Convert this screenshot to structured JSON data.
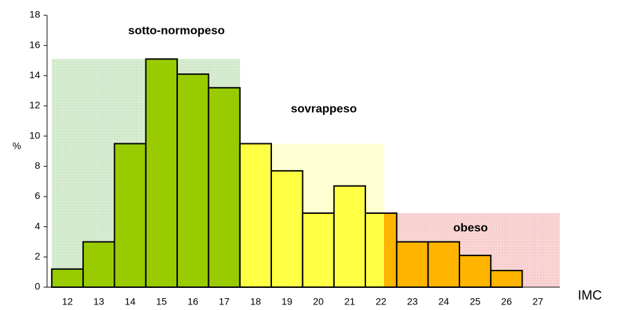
{
  "chart_data": {
    "type": "bar",
    "y_label": "%",
    "x_label": "IMC",
    "x": [
      12,
      13,
      14,
      15,
      16,
      17,
      18,
      19,
      20,
      21,
      22,
      23,
      24,
      25,
      26,
      27
    ],
    "values": [
      1.2,
      3.0,
      9.5,
      15.1,
      14.1,
      13.2,
      9.5,
      7.7,
      4.9,
      6.7,
      4.9,
      3.0,
      3.0,
      2.1,
      1.1,
      null
    ],
    "xlim": [
      11.35,
      27.7
    ],
    "ylim": [
      0,
      18
    ],
    "yticks": [
      0,
      2,
      4,
      6,
      8,
      10,
      12,
      14,
      16,
      18
    ],
    "regions": [
      {
        "label": "sotto-normopeso",
        "from": 11.5,
        "to": 17.5,
        "height": 15.1,
        "color": "#cfe8c8",
        "bar_color": "#99cc00"
      },
      {
        "label": "sovrappeso",
        "from": 17.5,
        "to": 22.1,
        "height": 9.5,
        "color": "#ffffcc",
        "bar_color": "#ffff44"
      },
      {
        "label": "obeso",
        "from": 22.1,
        "to": 27.7,
        "height": 4.9,
        "color": "#f8cccc",
        "bar_color": "#ffb400"
      }
    ]
  }
}
